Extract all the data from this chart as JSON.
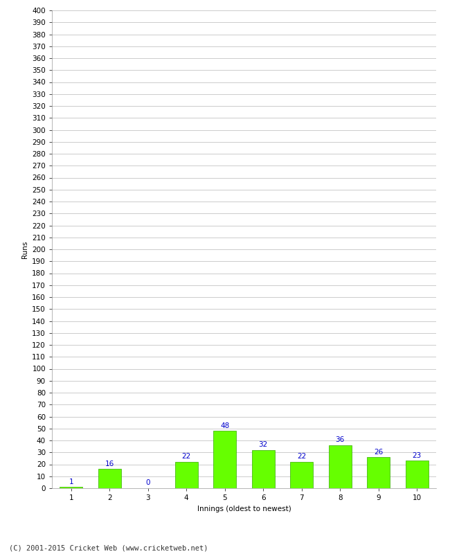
{
  "categories": [
    "1",
    "2",
    "3",
    "4",
    "5",
    "6",
    "7",
    "8",
    "9",
    "10"
  ],
  "values": [
    1,
    16,
    0,
    22,
    48,
    32,
    22,
    36,
    26,
    23
  ],
  "bar_color": "#66ff00",
  "bar_edge_color": "#33aa00",
  "label_color": "#0000cc",
  "ylabel": "Runs",
  "xlabel": "Innings (oldest to newest)",
  "ylim": [
    0,
    400
  ],
  "ytick_step": 10,
  "background_color": "#ffffff",
  "grid_color": "#cccccc",
  "footer": "(C) 2001-2015 Cricket Web (www.cricketweb.net)",
  "label_fontsize": 7.5,
  "axis_fontsize": 7.5,
  "footer_fontsize": 7.5
}
